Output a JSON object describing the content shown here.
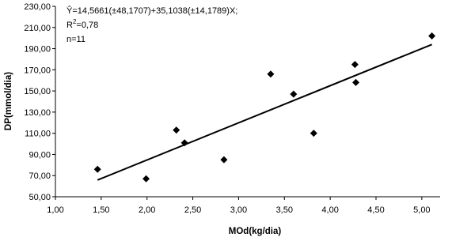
{
  "chart_data": {
    "type": "scatter",
    "x_label": "MOd(kg/dia)",
    "y_label": "DP(mmol/dia)",
    "annotations": {
      "equation": "Ŷ=14,5661(±48,1707)+35,1038(±14,1789)X;",
      "r2_prefix": "R",
      "r2_sup": "2",
      "r2_value": "=0,78",
      "n": "n=11"
    },
    "series": [
      {
        "type": "scatter",
        "color": "#000000",
        "x": [
          1.46,
          1.99,
          2.32,
          2.41,
          2.84,
          3.35,
          3.6,
          3.82,
          4.27,
          4.28,
          5.11
        ],
        "values": [
          76,
          67,
          113,
          101,
          85,
          166,
          147,
          110,
          175,
          158,
          202
        ]
      },
      {
        "type": "line",
        "color": "#000000",
        "x": [
          1.46,
          5.11
        ],
        "values": [
          65.82,
          193.94
        ]
      }
    ],
    "xlim": [
      1,
      5.2
    ],
    "ylim": [
      50,
      230
    ],
    "xticks": [
      {
        "value": 1,
        "label": "1,00"
      },
      {
        "value": 1.5,
        "label": "1,50"
      },
      {
        "value": 2,
        "label": "2,00"
      },
      {
        "value": 2.5,
        "label": "2,50"
      },
      {
        "value": 3,
        "label": "3,00"
      },
      {
        "value": 3.5,
        "label": "3,50"
      },
      {
        "value": 4,
        "label": "4,00"
      },
      {
        "value": 4.5,
        "label": "4,50"
      },
      {
        "value": 5,
        "label": "5,00"
      }
    ],
    "yticks": [
      {
        "value": 50,
        "label": "50,00"
      },
      {
        "value": 70,
        "label": "70,00"
      },
      {
        "value": 90,
        "label": "90,00"
      },
      {
        "value": 110,
        "label": "110,00"
      },
      {
        "value": 130,
        "label": "130,00"
      },
      {
        "value": 150,
        "label": "150,00"
      },
      {
        "value": 170,
        "label": "170,00"
      },
      {
        "value": 190,
        "label": "190,00"
      },
      {
        "value": 210,
        "label": "210,00"
      },
      {
        "value": 230,
        "label": "230,00"
      }
    ]
  }
}
